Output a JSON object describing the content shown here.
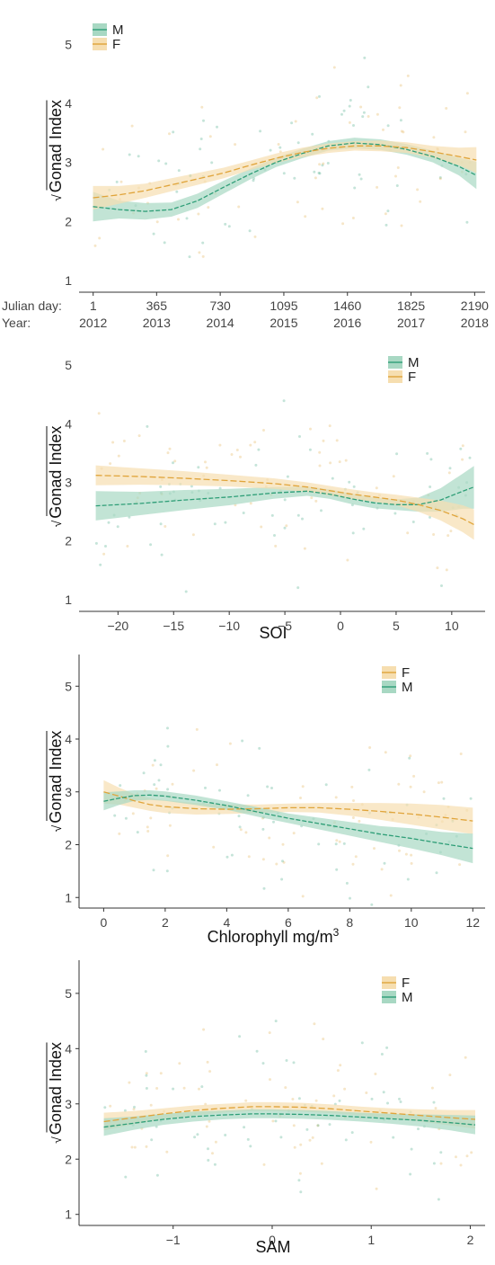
{
  "colors": {
    "M": "#2e9e77",
    "M_band": "#a8d8c3",
    "F": "#e0a43a",
    "F_band": "#f6deb0"
  },
  "chart_data": [
    {
      "type": "line",
      "xlabel": "",
      "ylabel": "Gonad Index",
      "ylabel_prefix": "√",
      "xlim": [
        -80,
        2250
      ],
      "ylim": [
        0.8,
        5.6
      ],
      "yticks": [
        1,
        2,
        3,
        4,
        5
      ],
      "xtick_row_labels": [
        "Julian day:",
        "Year:"
      ],
      "xticks": [
        1,
        365,
        730,
        1095,
        1460,
        1825,
        2190
      ],
      "xtick_julian": [
        "1",
        "365",
        "730",
        "1095",
        "1460",
        "1825",
        "2190"
      ],
      "xtick_year": [
        "2012",
        "2013",
        "2014",
        "2015",
        "2016",
        "2017",
        "2018"
      ],
      "legend": [
        "M",
        "F"
      ],
      "legend_position": "top-left",
      "series": [
        {
          "name": "M",
          "x": [
            0,
            150,
            300,
            450,
            600,
            750,
            900,
            1050,
            1200,
            1350,
            1500,
            1650,
            1800,
            1950,
            2100,
            2200
          ],
          "y": [
            2.25,
            2.2,
            2.17,
            2.2,
            2.35,
            2.58,
            2.8,
            3.0,
            3.15,
            3.28,
            3.33,
            3.3,
            3.22,
            3.1,
            2.93,
            2.78
          ],
          "lower": [
            2.0,
            2.05,
            2.03,
            2.08,
            2.23,
            2.47,
            2.71,
            2.92,
            3.07,
            3.2,
            3.24,
            3.21,
            3.13,
            3.0,
            2.78,
            2.55
          ],
          "upper": [
            2.5,
            2.35,
            2.31,
            2.32,
            2.47,
            2.69,
            2.89,
            3.08,
            3.23,
            3.36,
            3.42,
            3.39,
            3.31,
            3.2,
            3.08,
            3.01
          ]
        },
        {
          "name": "F",
          "x": [
            0,
            150,
            300,
            450,
            600,
            750,
            900,
            1050,
            1200,
            1350,
            1500,
            1650,
            1800,
            1950,
            2100,
            2200
          ],
          "y": [
            2.4,
            2.45,
            2.52,
            2.62,
            2.72,
            2.82,
            2.95,
            3.07,
            3.17,
            3.24,
            3.28,
            3.28,
            3.25,
            3.18,
            3.1,
            3.04
          ],
          "lower": [
            2.2,
            2.3,
            2.4,
            2.51,
            2.62,
            2.73,
            2.87,
            2.99,
            3.09,
            3.16,
            3.2,
            3.19,
            3.16,
            3.08,
            2.95,
            2.82
          ],
          "upper": [
            2.6,
            2.6,
            2.64,
            2.73,
            2.82,
            2.91,
            3.03,
            3.15,
            3.25,
            3.32,
            3.36,
            3.37,
            3.34,
            3.28,
            3.25,
            3.26
          ]
        }
      ]
    },
    {
      "type": "line",
      "xlabel": "SOI",
      "ylabel": "Gonad Index",
      "ylabel_prefix": "√",
      "xlim": [
        -23.5,
        13
      ],
      "ylim": [
        0.8,
        5.4
      ],
      "yticks": [
        1,
        2,
        3,
        4,
        5
      ],
      "xticks": [
        -20,
        -15,
        -10,
        -5,
        0,
        5,
        10
      ],
      "legend": [
        "M",
        "F"
      ],
      "legend_position": "top-right",
      "series": [
        {
          "name": "M",
          "x": [
            -22,
            -18,
            -14,
            -10,
            -6,
            -3,
            -1,
            1,
            3,
            5,
            7,
            9,
            11,
            12
          ],
          "y": [
            2.6,
            2.64,
            2.7,
            2.75,
            2.82,
            2.85,
            2.8,
            2.72,
            2.65,
            2.62,
            2.62,
            2.7,
            2.85,
            2.92
          ],
          "lower": [
            2.35,
            2.44,
            2.53,
            2.61,
            2.72,
            2.77,
            2.72,
            2.63,
            2.56,
            2.53,
            2.5,
            2.5,
            2.55,
            2.55
          ],
          "upper": [
            2.85,
            2.84,
            2.87,
            2.89,
            2.92,
            2.93,
            2.88,
            2.81,
            2.74,
            2.71,
            2.74,
            2.9,
            3.15,
            3.28
          ]
        },
        {
          "name": "F",
          "x": [
            -22,
            -18,
            -14,
            -10,
            -6,
            -3,
            -1,
            1,
            3,
            5,
            7,
            9,
            11,
            12
          ],
          "y": [
            3.12,
            3.1,
            3.07,
            3.03,
            2.98,
            2.92,
            2.86,
            2.8,
            2.75,
            2.7,
            2.62,
            2.52,
            2.38,
            2.28
          ],
          "lower": [
            2.95,
            2.96,
            2.95,
            2.93,
            2.89,
            2.84,
            2.78,
            2.72,
            2.67,
            2.61,
            2.5,
            2.35,
            2.15,
            2.02
          ],
          "upper": [
            3.29,
            3.24,
            3.19,
            3.13,
            3.07,
            3.0,
            2.94,
            2.88,
            2.83,
            2.79,
            2.74,
            2.69,
            2.61,
            2.54
          ]
        }
      ]
    },
    {
      "type": "line",
      "xlabel": "Chlorophyll mg/m",
      "xlabel_superscript": "3",
      "ylabel": "Gonad Index",
      "ylabel_prefix": "√",
      "xlim": [
        -0.8,
        12.4
      ],
      "ylim": [
        0.8,
        5.6
      ],
      "yticks": [
        1,
        2,
        3,
        4,
        5
      ],
      "xticks": [
        0,
        2,
        4,
        6,
        8,
        10,
        12
      ],
      "legend": [
        "F",
        "M"
      ],
      "legend_position": "top-right",
      "series": [
        {
          "name": "F",
          "x": [
            0,
            0.5,
            1,
            1.5,
            2,
            3,
            4,
            5,
            6,
            7,
            8,
            9,
            10,
            11,
            12
          ],
          "y": [
            3.0,
            2.92,
            2.83,
            2.76,
            2.72,
            2.68,
            2.67,
            2.68,
            2.7,
            2.7,
            2.67,
            2.63,
            2.58,
            2.52,
            2.45
          ],
          "lower": [
            2.78,
            2.76,
            2.7,
            2.64,
            2.6,
            2.57,
            2.58,
            2.6,
            2.62,
            2.61,
            2.55,
            2.47,
            2.38,
            2.29,
            2.2
          ],
          "upper": [
            3.22,
            3.08,
            2.96,
            2.88,
            2.84,
            2.79,
            2.76,
            2.76,
            2.78,
            2.79,
            2.79,
            2.79,
            2.78,
            2.75,
            2.7
          ]
        },
        {
          "name": "M",
          "x": [
            0,
            0.5,
            1,
            1.5,
            2,
            3,
            4,
            5,
            6,
            7,
            8,
            9,
            10,
            11,
            12
          ],
          "y": [
            2.82,
            2.88,
            2.93,
            2.94,
            2.92,
            2.84,
            2.74,
            2.62,
            2.5,
            2.4,
            2.3,
            2.2,
            2.12,
            2.02,
            1.93
          ],
          "lower": [
            2.65,
            2.75,
            2.83,
            2.85,
            2.83,
            2.75,
            2.66,
            2.53,
            2.41,
            2.29,
            2.17,
            2.05,
            1.93,
            1.8,
            1.65
          ],
          "upper": [
            2.99,
            3.01,
            3.03,
            3.03,
            3.01,
            2.93,
            2.82,
            2.71,
            2.59,
            2.51,
            2.43,
            2.35,
            2.31,
            2.24,
            2.21
          ]
        }
      ]
    },
    {
      "type": "line",
      "xlabel": "SAM",
      "ylabel": "Gonad Index",
      "ylabel_prefix": "√",
      "xlim": [
        -1.95,
        2.15
      ],
      "ylim": [
        0.8,
        5.6
      ],
      "yticks": [
        1,
        2,
        3,
        4,
        5
      ],
      "xticks": [
        -1,
        0,
        1,
        2
      ],
      "legend": [
        "F",
        "M"
      ],
      "legend_position": "top-right",
      "series": [
        {
          "name": "F",
          "x": [
            -1.7,
            -1.4,
            -1.1,
            -0.8,
            -0.5,
            -0.2,
            0,
            0.3,
            0.6,
            0.9,
            1.2,
            1.5,
            1.8,
            2.05
          ],
          "y": [
            2.68,
            2.75,
            2.82,
            2.88,
            2.92,
            2.95,
            2.95,
            2.94,
            2.91,
            2.87,
            2.83,
            2.79,
            2.75,
            2.72
          ],
          "lower": [
            2.52,
            2.63,
            2.72,
            2.79,
            2.84,
            2.87,
            2.87,
            2.86,
            2.83,
            2.79,
            2.74,
            2.68,
            2.61,
            2.55
          ],
          "upper": [
            2.84,
            2.87,
            2.92,
            2.97,
            3.0,
            3.03,
            3.03,
            3.02,
            2.99,
            2.95,
            2.92,
            2.9,
            2.89,
            2.89
          ]
        },
        {
          "name": "M",
          "x": [
            -1.7,
            -1.4,
            -1.1,
            -0.8,
            -0.5,
            -0.2,
            0,
            0.3,
            0.6,
            0.9,
            1.2,
            1.5,
            1.8,
            2.05
          ],
          "y": [
            2.58,
            2.65,
            2.72,
            2.77,
            2.8,
            2.82,
            2.82,
            2.81,
            2.79,
            2.76,
            2.73,
            2.7,
            2.66,
            2.62
          ],
          "lower": [
            2.42,
            2.53,
            2.62,
            2.68,
            2.72,
            2.74,
            2.74,
            2.73,
            2.71,
            2.68,
            2.64,
            2.59,
            2.52,
            2.45
          ],
          "upper": [
            2.74,
            2.77,
            2.82,
            2.86,
            2.88,
            2.9,
            2.9,
            2.89,
            2.87,
            2.84,
            2.82,
            2.81,
            2.8,
            2.79
          ]
        }
      ]
    }
  ]
}
